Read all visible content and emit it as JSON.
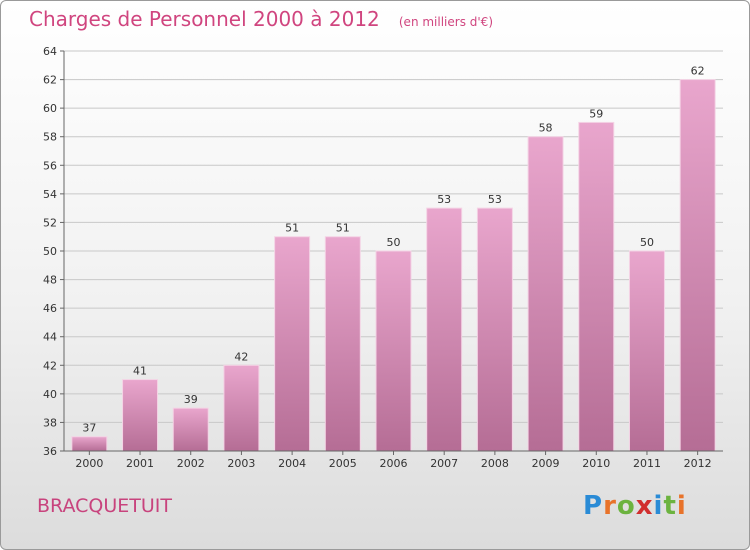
{
  "title": "Charges de Personnel 2000 à 2012",
  "subtitle": "(en milliers d'€)",
  "town": "BRACQUETUIT",
  "brand": {
    "text": "Proxiti",
    "letter_colors": [
      "#2a8bd6",
      "#e8732a",
      "#6cb33f",
      "#d12e2e",
      "#2a8bd6",
      "#6cb33f",
      "#e8732a"
    ]
  },
  "colors": {
    "bar_top": "#e9a6cd",
    "bar_bottom": "#b56d95",
    "title": "#d0457f",
    "town": "#c8437d"
  },
  "chart_data": {
    "type": "bar",
    "title": "Charges de Personnel 2000 à 2012",
    "subtitle": "(en milliers d'€)",
    "categories": [
      "2000",
      "2001",
      "2002",
      "2003",
      "2004",
      "2005",
      "2006",
      "2007",
      "2008",
      "2009",
      "2010",
      "2011",
      "2012"
    ],
    "values": [
      37,
      41,
      39,
      42,
      51,
      51,
      50,
      53,
      53,
      58,
      59,
      50,
      62
    ],
    "ylim": [
      36,
      64
    ],
    "yticks": [
      36,
      38,
      40,
      42,
      44,
      46,
      48,
      50,
      52,
      54,
      56,
      58,
      60,
      62,
      64
    ],
    "grid": true,
    "data_labels": true
  }
}
